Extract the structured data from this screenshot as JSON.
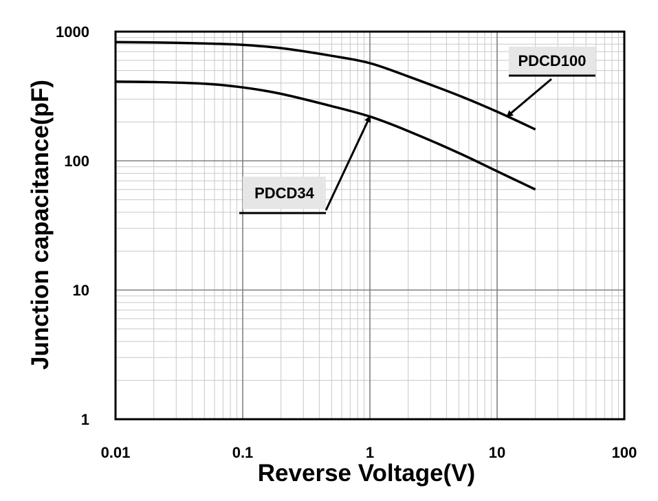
{
  "chart_data": {
    "type": "line",
    "x_scale": "log",
    "y_scale": "log",
    "xlabel": "Reverse Voltage(V)",
    "ylabel": "Junction capacitance(pF)",
    "xlim": [
      0.01,
      100
    ],
    "ylim": [
      1,
      1000
    ],
    "x_ticks": [
      "0.01",
      "0.1",
      "1",
      "10",
      "100"
    ],
    "y_ticks": [
      "1",
      "10",
      "100",
      "1000"
    ],
    "grid": true,
    "series": [
      {
        "name": "PDCD100",
        "x": [
          0.01,
          0.02,
          0.05,
          0.1,
          0.2,
          0.5,
          1,
          2,
          5,
          10,
          20
        ],
        "y": [
          830,
          825,
          810,
          790,
          745,
          650,
          570,
          450,
          320,
          240,
          175
        ]
      },
      {
        "name": "PDCD34",
        "x": [
          0.01,
          0.02,
          0.05,
          0.1,
          0.2,
          0.5,
          1,
          2,
          5,
          10,
          20
        ],
        "y": [
          410,
          407,
          395,
          370,
          330,
          265,
          220,
          170,
          115,
          83,
          60
        ]
      }
    ],
    "annotations": [
      {
        "text": "PDCD100",
        "series": "PDCD100",
        "points_to_x": 12
      },
      {
        "text": "PDCD34",
        "series": "PDCD34",
        "points_to_x": 1
      }
    ]
  },
  "colors": {
    "line": "#000000",
    "grid_major": "#808080",
    "grid_minor": "#c8c8c8",
    "label_bg": "#e6e6e6"
  }
}
